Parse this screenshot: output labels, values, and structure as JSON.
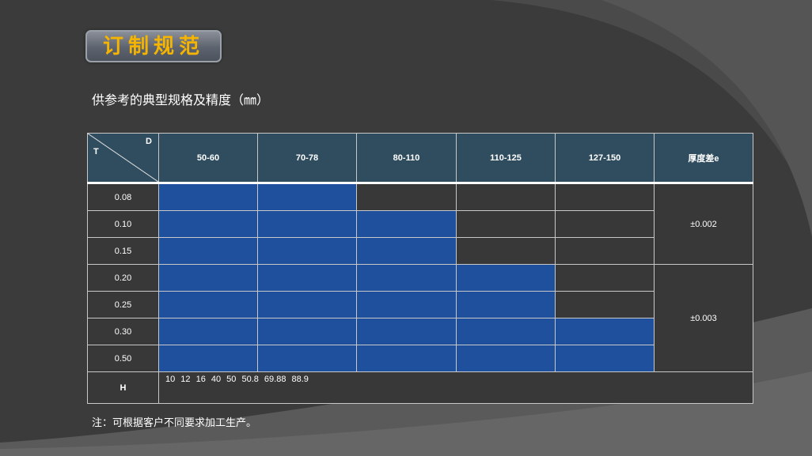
{
  "title": "订制规范",
  "subtitle": "供参考的典型规格及精度（㎜）",
  "table": {
    "corner_row_label": "T",
    "corner_col_label": "D",
    "columns": [
      "50-60",
      "70-78",
      "80-110",
      "110-125",
      "127-150"
    ],
    "tolerance_header": "厚度差e",
    "rows": [
      {
        "t": "0.08",
        "filled": 2
      },
      {
        "t": "0.10",
        "filled": 3
      },
      {
        "t": "0.15",
        "filled": 3
      },
      {
        "t": "0.20",
        "filled": 4
      },
      {
        "t": "0.25",
        "filled": 4
      },
      {
        "t": "0.30",
        "filled": 5
      },
      {
        "t": "0.50",
        "filled": 5
      }
    ],
    "tolerances": [
      {
        "value": "±0.002",
        "rows": 3
      },
      {
        "value": "±0.003",
        "rows": 4
      }
    ],
    "h_label": "H",
    "h_values": "10   12   16   40   50   50.8   69.88   88.9"
  },
  "note": "注：可根据客户不同要求加工生产。",
  "colors": {
    "fill": "#1f509e",
    "header": "#2f4d5f",
    "title": "#f5b400"
  }
}
